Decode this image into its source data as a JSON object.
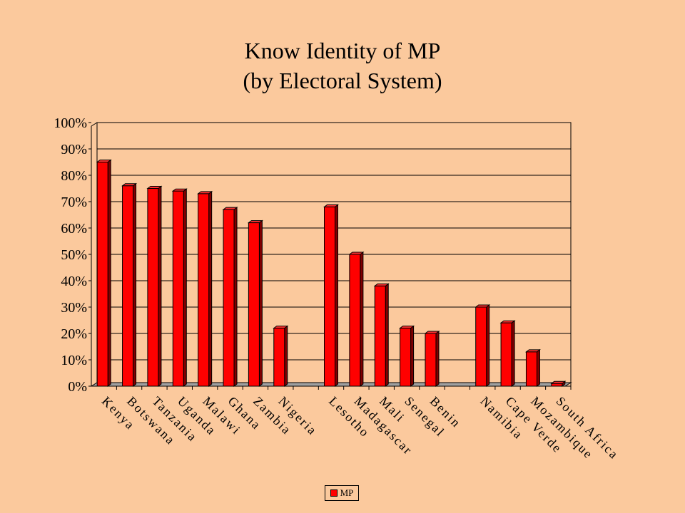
{
  "slide": {
    "title_line1": "Know Identity of MP",
    "title_line2": "(by Electoral System)"
  },
  "chart_data": {
    "type": "bar",
    "title": "Know Identity of MP (by Electoral System)",
    "xlabel": "",
    "ylabel": "",
    "ylim": [
      0,
      100
    ],
    "y_ticks": [
      "0%",
      "10%",
      "20%",
      "30%",
      "40%",
      "50%",
      "60%",
      "70%",
      "80%",
      "90%",
      "100%"
    ],
    "grid": true,
    "legend_position": "bottom-center",
    "bar_color": "#FF0000",
    "background": "#FBC99D",
    "categories": [
      "Kenya",
      "Botswana",
      "Tanzania",
      "Uganda",
      "Malawi",
      "Ghana",
      "Zambia",
      "Nigeria",
      "",
      "Lesotho",
      "Madagascar",
      "Mali",
      "Senegal",
      "Benin",
      "",
      "Namibia",
      "Cape Verde",
      "Mozambique",
      "South Africa"
    ],
    "series": [
      {
        "name": "MP",
        "values": [
          85,
          76,
          75,
          74,
          73,
          67,
          62,
          22,
          null,
          68,
          50,
          38,
          22,
          20,
          null,
          30,
          24,
          13,
          1
        ]
      }
    ]
  }
}
